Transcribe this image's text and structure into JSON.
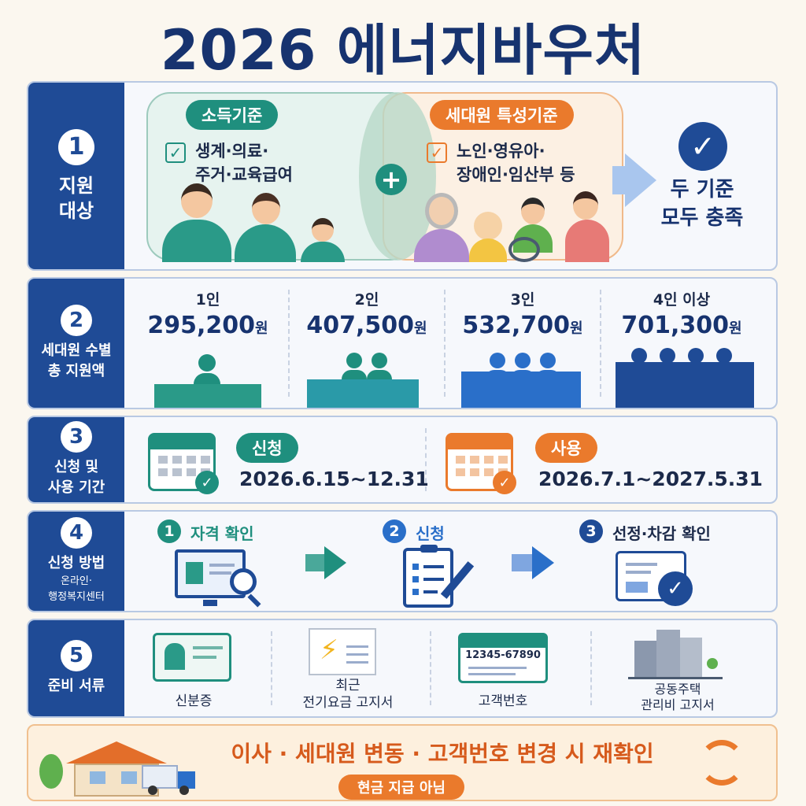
{
  "title": "2026 에너지바우처",
  "rows": {
    "r1": {
      "num": "1",
      "label1": "지원",
      "label2": "대상",
      "income": {
        "tag": "소득기준",
        "text1": "생계·의료·",
        "text2": "주거·교육급여"
      },
      "household": {
        "tag": "세대원 특성기준",
        "text1": "노인·영유아·",
        "text2": "장애인·임산부 등"
      },
      "result1": "두 기준",
      "result2": "모두 충족"
    },
    "r2": {
      "num": "2",
      "label1": "세대원 수별",
      "label2": "총 지원액",
      "tiers": [
        {
          "people": "1인",
          "amount": "295,200",
          "unit": "원"
        },
        {
          "people": "2인",
          "amount": "407,500",
          "unit": "원"
        },
        {
          "people": "3인",
          "amount": "532,700",
          "unit": "원"
        },
        {
          "people": "4인 이상",
          "amount": "701,300",
          "unit": "원"
        }
      ]
    },
    "r3": {
      "num": "3",
      "label1": "신청 및",
      "label2": "사용 기간",
      "apply": {
        "tag": "신청",
        "period": "2026.6.15~12.31"
      },
      "use": {
        "tag": "사용",
        "period": "2026.7.1~2027.5.31"
      }
    },
    "r4": {
      "num": "4",
      "label1": "신청 방법",
      "sub1": "온라인·",
      "sub2": "행정복지센터",
      "steps": [
        {
          "n": "1",
          "label": "자격 확인"
        },
        {
          "n": "2",
          "label": "신청"
        },
        {
          "n": "3",
          "label": "선정·차감 확인"
        }
      ]
    },
    "r5": {
      "num": "5",
      "label1": "준비 서류",
      "docs": {
        "id": "신분증",
        "bill1": "최근",
        "bill2": "전기요금 고지서",
        "customer": "고객번호",
        "customer_no": "12345-67890",
        "apt1": "공동주택",
        "apt2": "관리비 고지서"
      }
    }
  },
  "footer": {
    "notice": "이사 · 세대원 변동 · 고객번호 변경 시 재확인",
    "badge": "현금 지급 아님"
  },
  "colors": {
    "navy": "#1f4b96",
    "teal": "#1f8f7e",
    "orange": "#ea7a2c"
  }
}
